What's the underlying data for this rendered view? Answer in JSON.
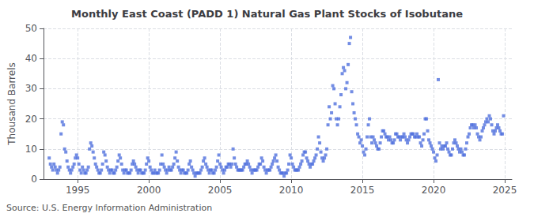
{
  "chart_data": {
    "type": "scatter",
    "title": "Monthly East Coast (PADD 1) Natural Gas Plant Stocks of Isobutane",
    "ylabel": "Thousand Barrels",
    "annotations": [
      "Source: U.S. Energy Information Administration"
    ],
    "marker": "square",
    "grid": true,
    "xlim": [
      1992.6,
      2025.5
    ],
    "xticks": [
      1995,
      2000,
      2005,
      2010,
      2015,
      2020,
      2025
    ],
    "ylim": [
      0,
      50
    ],
    "yticks": [
      0,
      10,
      20,
      30,
      40,
      50
    ],
    "x": [
      1993.0,
      1993.083,
      1993.167,
      1993.25,
      1993.333,
      1993.417,
      1993.5,
      1993.583,
      1993.667,
      1993.75,
      1993.833,
      1993.917,
      1994.0,
      1994.083,
      1994.167,
      1994.25,
      1994.333,
      1994.417,
      1994.5,
      1994.583,
      1994.667,
      1994.75,
      1994.833,
      1994.917,
      1995.0,
      1995.083,
      1995.167,
      1995.25,
      1995.333,
      1995.417,
      1995.5,
      1995.583,
      1995.667,
      1995.75,
      1995.833,
      1995.917,
      1996.0,
      1996.083,
      1996.167,
      1996.25,
      1996.333,
      1996.417,
      1996.5,
      1996.583,
      1996.667,
      1996.75,
      1996.833,
      1996.917,
      1997.0,
      1997.083,
      1997.167,
      1997.25,
      1997.333,
      1997.417,
      1997.5,
      1997.583,
      1997.667,
      1997.75,
      1997.833,
      1997.917,
      1998.0,
      1998.083,
      1998.167,
      1998.25,
      1998.333,
      1998.417,
      1998.5,
      1998.583,
      1998.667,
      1998.75,
      1998.833,
      1998.917,
      1999.0,
      1999.083,
      1999.167,
      1999.25,
      1999.333,
      1999.417,
      1999.5,
      1999.583,
      1999.667,
      1999.75,
      1999.833,
      1999.917,
      2000.0,
      2000.083,
      2000.167,
      2000.25,
      2000.333,
      2000.417,
      2000.5,
      2000.583,
      2000.667,
      2000.75,
      2000.833,
      2000.917,
      2001.0,
      2001.083,
      2001.167,
      2001.25,
      2001.333,
      2001.417,
      2001.5,
      2001.583,
      2001.667,
      2001.75,
      2001.833,
      2001.917,
      2002.0,
      2002.083,
      2002.167,
      2002.25,
      2002.333,
      2002.417,
      2002.5,
      2002.583,
      2002.667,
      2002.75,
      2002.833,
      2002.917,
      2003.0,
      2003.083,
      2003.167,
      2003.25,
      2003.333,
      2003.417,
      2003.5,
      2003.583,
      2003.667,
      2003.75,
      2003.833,
      2003.917,
      2004.0,
      2004.083,
      2004.167,
      2004.25,
      2004.333,
      2004.417,
      2004.5,
      2004.583,
      2004.667,
      2004.75,
      2004.833,
      2004.917,
      2005.0,
      2005.083,
      2005.167,
      2005.25,
      2005.333,
      2005.417,
      2005.5,
      2005.583,
      2005.667,
      2005.75,
      2005.833,
      2005.917,
      2006.0,
      2006.083,
      2006.167,
      2006.25,
      2006.333,
      2006.417,
      2006.5,
      2006.583,
      2006.667,
      2006.75,
      2006.833,
      2006.917,
      2007.0,
      2007.083,
      2007.167,
      2007.25,
      2007.333,
      2007.417,
      2007.5,
      2007.583,
      2007.667,
      2007.75,
      2007.833,
      2007.917,
      2008.0,
      2008.083,
      2008.167,
      2008.25,
      2008.333,
      2008.417,
      2008.5,
      2008.583,
      2008.667,
      2008.75,
      2008.833,
      2008.917,
      2009.0,
      2009.083,
      2009.167,
      2009.25,
      2009.333,
      2009.417,
      2009.5,
      2009.583,
      2009.667,
      2009.75,
      2009.833,
      2009.917,
      2010.0,
      2010.083,
      2010.167,
      2010.25,
      2010.333,
      2010.417,
      2010.5,
      2010.583,
      2010.667,
      2010.75,
      2010.833,
      2010.917,
      2011.0,
      2011.083,
      2011.167,
      2011.25,
      2011.333,
      2011.417,
      2011.5,
      2011.583,
      2011.667,
      2011.75,
      2011.833,
      2011.917,
      2012.0,
      2012.083,
      2012.167,
      2012.25,
      2012.333,
      2012.417,
      2012.5,
      2012.583,
      2012.667,
      2012.75,
      2012.833,
      2012.917,
      2013.0,
      2013.083,
      2013.167,
      2013.25,
      2013.333,
      2013.417,
      2013.5,
      2013.583,
      2013.667,
      2013.75,
      2013.833,
      2013.917,
      2014.0,
      2014.083,
      2014.167,
      2014.25,
      2014.333,
      2014.417,
      2014.5,
      2014.583,
      2014.667,
      2014.75,
      2014.833,
      2014.917,
      2015.0,
      2015.083,
      2015.167,
      2015.25,
      2015.333,
      2015.417,
      2015.5,
      2015.583,
      2015.667,
      2015.75,
      2015.833,
      2015.917,
      2016.0,
      2016.083,
      2016.167,
      2016.25,
      2016.333,
      2016.417,
      2016.5,
      2016.583,
      2016.667,
      2016.75,
      2016.833,
      2016.917,
      2017.0,
      2017.083,
      2017.167,
      2017.25,
      2017.333,
      2017.417,
      2017.5,
      2017.583,
      2017.667,
      2017.75,
      2017.833,
      2017.917,
      2018.0,
      2018.083,
      2018.167,
      2018.25,
      2018.333,
      2018.417,
      2018.5,
      2018.583,
      2018.667,
      2018.75,
      2018.833,
      2018.917,
      2019.0,
      2019.083,
      2019.167,
      2019.25,
      2019.333,
      2019.417,
      2019.5,
      2019.583,
      2019.667,
      2019.75,
      2019.833,
      2019.917,
      2020.0,
      2020.083,
      2020.167,
      2020.25,
      2020.333,
      2020.417,
      2020.5,
      2020.583,
      2020.667,
      2020.75,
      2020.833,
      2020.917,
      2021.0,
      2021.083,
      2021.167,
      2021.25,
      2021.333,
      2021.417,
      2021.5,
      2021.583,
      2021.667,
      2021.75,
      2021.833,
      2021.917,
      2022.0,
      2022.083,
      2022.167,
      2022.25,
      2022.333,
      2022.417,
      2022.5,
      2022.583,
      2022.667,
      2022.75,
      2022.833,
      2022.917,
      2023.0,
      2023.083,
      2023.167,
      2023.25,
      2023.333,
      2023.417,
      2023.5,
      2023.583,
      2023.667,
      2023.75,
      2023.833,
      2023.917,
      2024.0,
      2024.083,
      2024.167,
      2024.25,
      2024.333,
      2024.417,
      2024.5,
      2024.583,
      2024.667,
      2024.75,
      2024.833,
      2024.917
    ],
    "values": [
      7,
      5,
      4,
      3,
      5,
      4,
      3,
      2,
      3,
      4,
      15,
      19,
      18,
      10,
      9,
      6,
      4,
      3,
      2,
      3,
      4,
      5,
      7,
      8,
      7,
      5,
      3,
      2,
      4,
      3,
      2,
      2,
      3,
      4,
      10,
      12,
      11,
      9,
      7,
      5,
      4,
      3,
      2,
      2,
      3,
      5,
      9,
      8,
      6,
      4,
      3,
      2,
      3,
      3,
      2,
      2,
      3,
      4,
      6,
      8,
      7,
      5,
      3,
      2,
      3,
      3,
      2,
      2,
      2,
      3,
      5,
      6,
      5,
      4,
      3,
      2,
      3,
      3,
      2,
      2,
      2,
      3,
      5,
      7,
      6,
      4,
      3,
      2,
      2,
      3,
      2,
      2,
      2,
      3,
      5,
      8,
      5,
      4,
      3,
      2,
      3,
      4,
      3,
      3,
      4,
      5,
      7,
      9,
      6,
      4,
      3,
      2,
      3,
      3,
      2,
      2,
      2,
      3,
      5,
      6,
      4,
      3,
      2,
      1,
      2,
      2,
      2,
      2,
      3,
      4,
      6,
      7,
      5,
      4,
      3,
      2,
      3,
      3,
      2,
      2,
      3,
      4,
      6,
      8,
      5,
      4,
      3,
      2,
      3,
      4,
      4,
      5,
      5,
      4,
      5,
      10,
      7,
      5,
      4,
      3,
      3,
      3,
      3,
      3,
      4,
      5,
      5,
      6,
      5,
      4,
      3,
      2,
      3,
      3,
      3,
      3,
      4,
      5,
      5,
      7,
      6,
      4,
      3,
      2,
      3,
      3,
      3,
      4,
      5,
      6,
      7,
      8,
      6,
      4,
      3,
      2,
      2,
      2,
      1,
      2,
      2,
      3,
      5,
      8,
      7,
      5,
      4,
      3,
      3,
      3,
      3,
      4,
      5,
      6,
      8,
      9,
      9,
      7,
      6,
      5,
      4,
      5,
      5,
      6,
      7,
      8,
      10,
      14,
      12,
      9,
      7,
      6,
      7,
      8,
      10,
      18,
      24,
      20,
      22,
      31,
      30,
      25,
      20,
      18,
      20,
      24,
      28,
      35,
      37,
      36,
      30,
      32,
      38,
      45,
      47,
      29,
      25,
      22,
      20,
      18,
      15,
      14,
      12,
      13,
      11,
      9,
      8,
      10,
      14,
      18,
      20,
      14,
      12,
      14,
      13,
      12,
      11,
      10,
      10,
      12,
      14,
      16,
      16,
      15,
      14,
      14,
      13,
      14,
      13,
      12,
      12,
      13,
      15,
      15,
      14,
      14,
      13,
      14,
      14,
      15,
      14,
      13,
      12,
      13,
      14,
      15,
      15,
      15,
      14,
      14,
      15,
      14,
      14,
      12,
      11,
      13,
      15,
      20,
      20,
      16,
      13,
      12,
      11,
      10,
      9,
      7,
      6,
      8,
      33,
      12,
      10,
      11,
      10,
      11,
      11,
      12,
      10,
      9,
      8,
      8,
      10,
      12,
      13,
      12,
      11,
      10,
      9,
      10,
      9,
      8,
      8,
      10,
      12,
      14,
      15,
      17,
      18,
      18,
      17,
      18,
      17,
      15,
      14,
      13,
      14,
      16,
      17,
      18,
      19,
      20,
      19,
      21,
      20,
      18,
      16,
      15,
      16,
      17,
      18,
      17,
      16,
      15,
      15,
      21
    ]
  }
}
